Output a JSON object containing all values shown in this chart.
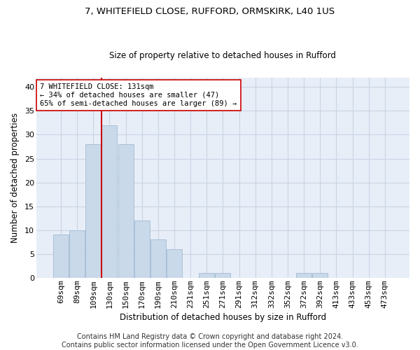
{
  "title1": "7, WHITEFIELD CLOSE, RUFFORD, ORMSKIRK, L40 1US",
  "title2": "Size of property relative to detached houses in Rufford",
  "xlabel": "Distribution of detached houses by size in Rufford",
  "ylabel": "Number of detached properties",
  "categories": [
    "69sqm",
    "89sqm",
    "109sqm",
    "130sqm",
    "150sqm",
    "170sqm",
    "190sqm",
    "210sqm",
    "231sqm",
    "251sqm",
    "271sqm",
    "291sqm",
    "312sqm",
    "332sqm",
    "352sqm",
    "372sqm",
    "392sqm",
    "413sqm",
    "433sqm",
    "453sqm",
    "473sqm"
  ],
  "values": [
    9,
    10,
    28,
    32,
    28,
    12,
    8,
    6,
    0,
    1,
    1,
    0,
    0,
    0,
    0,
    1,
    1,
    0,
    0,
    0,
    0
  ],
  "bar_color": "#c9d9ea",
  "bar_edge_color": "#a8c0d6",
  "vline_x": 2.5,
  "vline_color": "#cc0000",
  "annotation_text": "7 WHITEFIELD CLOSE: 131sqm\n← 34% of detached houses are smaller (47)\n65% of semi-detached houses are larger (89) →",
  "annotation_box_color": "#ffffff",
  "annotation_box_edge_color": "#cc0000",
  "ylim": [
    0,
    42
  ],
  "yticks": [
    0,
    5,
    10,
    15,
    20,
    25,
    30,
    35,
    40
  ],
  "footer_text": "Contains HM Land Registry data © Crown copyright and database right 2024.\nContains public sector information licensed under the Open Government Licence v3.0.",
  "grid_color": "#c8d4e4",
  "bg_color": "#e8eef8",
  "title1_fontsize": 9.5,
  "title2_fontsize": 8.5,
  "xlabel_fontsize": 8.5,
  "ylabel_fontsize": 8.5,
  "footer_fontsize": 7,
  "tick_fontsize": 8
}
